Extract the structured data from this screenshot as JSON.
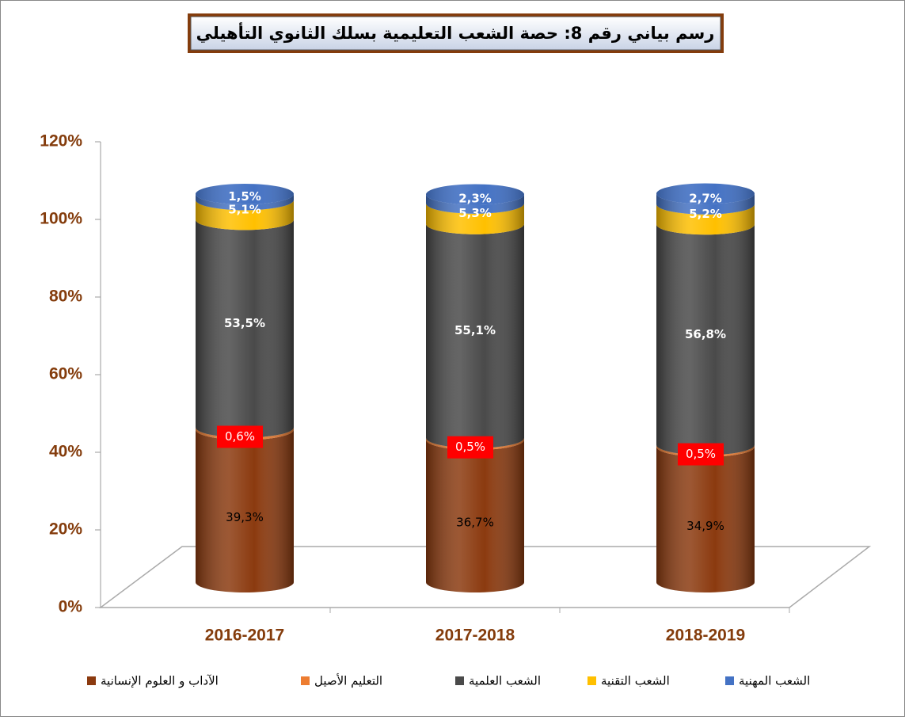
{
  "chart_data": {
    "type": "bar",
    "stacked": true,
    "title": "رسم بياني رقم 8: حصة الشعب التعليمية بسلك الثانوي التأهيلي",
    "categories": [
      "2016-2017",
      "2017-2018",
      "2018-2019"
    ],
    "series": [
      {
        "name": "الآداب و العلوم الإنسانية",
        "color": "#8b3a0f",
        "values": [
          39.3,
          36.7,
          34.9
        ],
        "value_labels": [
          "39,3%",
          "36,7%",
          "34,9%"
        ]
      },
      {
        "name": "التعليم الأصيل",
        "color": "#ed7d31",
        "values": [
          0.6,
          0.5,
          0.5
        ],
        "value_labels": [
          "0,6%",
          "0,5%",
          "0,5%"
        ]
      },
      {
        "name": "الشعب العلمية",
        "color": "#4a4a4a",
        "values": [
          53.5,
          55.1,
          56.8
        ],
        "value_labels": [
          "53,5%",
          "55,1%",
          "56,8%"
        ]
      },
      {
        "name": "الشعب التقنية",
        "color": "#ffc000",
        "values": [
          5.1,
          5.3,
          5.2
        ],
        "value_labels": [
          "5,1%",
          "5,3%",
          "5,2%"
        ]
      },
      {
        "name": "الشعب المهنية",
        "color": "#4472c4",
        "values": [
          1.5,
          2.3,
          2.7
        ],
        "value_labels": [
          "1,5%",
          "2,3%",
          "2,7%"
        ]
      }
    ],
    "ylim": [
      0,
      120
    ],
    "yticks": [
      {
        "value": 0,
        "label": "0%"
      },
      {
        "value": 20,
        "label": "20%"
      },
      {
        "value": 40,
        "label": "40%"
      },
      {
        "value": 60,
        "label": "60%"
      },
      {
        "value": 80,
        "label": "80%"
      },
      {
        "value": 100,
        "label": "100%"
      },
      {
        "value": 120,
        "label": "120%"
      }
    ],
    "grid": false,
    "legend": "bottom"
  }
}
